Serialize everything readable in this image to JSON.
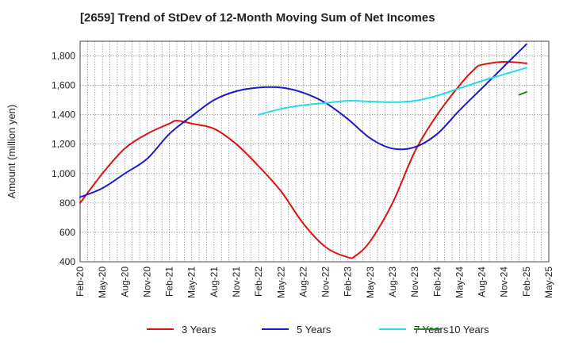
{
  "title": "[2659]  Trend of StDev of 12-Month Moving Sum of Net Incomes",
  "chart_data": {
    "type": "line",
    "title": "[2659]  Trend of StDev of 12-Month Moving Sum of Net Incomes",
    "xlabel": "",
    "ylabel": "Amount (million yen)",
    "ylim": [
      400,
      1900
    ],
    "yticks": [
      400,
      600,
      800,
      1000,
      1200,
      1400,
      1600,
      1800
    ],
    "ytick_labels": [
      "400",
      "600",
      "800",
      "1,000",
      "1,200",
      "1,400",
      "1,600",
      "1,800"
    ],
    "xticks": [
      "Feb-20",
      "May-20",
      "Aug-20",
      "Nov-20",
      "Feb-21",
      "May-21",
      "Aug-21",
      "Nov-21",
      "Feb-22",
      "May-22",
      "Aug-22",
      "Nov-22",
      "Feb-23",
      "May-23",
      "Aug-23",
      "Nov-23",
      "Feb-24",
      "May-24",
      "Aug-24",
      "Nov-24",
      "Feb-25",
      "May-25"
    ],
    "grid": true,
    "grid_style": "dotted",
    "legend_position": "bottom",
    "series": [
      {
        "name": "3 Years",
        "color": "#dd1111",
        "points": [
          [
            "Feb-20",
            800
          ],
          [
            "May-20",
            1000
          ],
          [
            "Aug-20",
            1170
          ],
          [
            "Nov-20",
            1270
          ],
          [
            "Feb-21",
            1340
          ],
          [
            "Mar-21",
            1360
          ],
          [
            "May-21",
            1340
          ],
          [
            "Aug-21",
            1305
          ],
          [
            "Nov-21",
            1200
          ],
          [
            "Feb-22",
            1050
          ],
          [
            "May-22",
            880
          ],
          [
            "Aug-22",
            660
          ],
          [
            "Nov-22",
            500
          ],
          [
            "Feb-23",
            430
          ],
          [
            "Mar-23",
            440
          ],
          [
            "May-23",
            540
          ],
          [
            "Aug-23",
            800
          ],
          [
            "Nov-23",
            1150
          ],
          [
            "Feb-24",
            1400
          ],
          [
            "May-24",
            1600
          ],
          [
            "Jul-24",
            1710
          ],
          [
            "Aug-24",
            1740
          ],
          [
            "Nov-24",
            1760
          ],
          [
            "Feb-25",
            1750
          ]
        ]
      },
      {
        "name": "5 Years",
        "color": "#1a1acc",
        "points": [
          [
            "Feb-20",
            840
          ],
          [
            "May-20",
            900
          ],
          [
            "Aug-20",
            1000
          ],
          [
            "Nov-20",
            1100
          ],
          [
            "Feb-21",
            1270
          ],
          [
            "May-21",
            1390
          ],
          [
            "Aug-21",
            1500
          ],
          [
            "Nov-21",
            1560
          ],
          [
            "Feb-22",
            1585
          ],
          [
            "May-22",
            1585
          ],
          [
            "Aug-22",
            1550
          ],
          [
            "Nov-22",
            1480
          ],
          [
            "Feb-23",
            1370
          ],
          [
            "May-23",
            1240
          ],
          [
            "Aug-23",
            1170
          ],
          [
            "Nov-23",
            1180
          ],
          [
            "Feb-24",
            1270
          ],
          [
            "May-24",
            1430
          ],
          [
            "Aug-24",
            1580
          ],
          [
            "Nov-24",
            1730
          ],
          [
            "Feb-25",
            1880
          ]
        ]
      },
      {
        "name": "7 Years",
        "color": "#22ddee",
        "points": [
          [
            "Feb-22",
            1400
          ],
          [
            "May-22",
            1440
          ],
          [
            "Aug-22",
            1465
          ],
          [
            "Nov-22",
            1480
          ],
          [
            "Feb-23",
            1495
          ],
          [
            "May-23",
            1490
          ],
          [
            "Aug-23",
            1485
          ],
          [
            "Nov-23",
            1495
          ],
          [
            "Feb-24",
            1530
          ],
          [
            "May-24",
            1580
          ],
          [
            "Aug-24",
            1630
          ],
          [
            "Nov-24",
            1675
          ],
          [
            "Feb-25",
            1720
          ]
        ]
      },
      {
        "name": "10 Years",
        "color": "#228822",
        "points": [
          [
            "Jan-25",
            1535
          ],
          [
            "Feb-25",
            1555
          ]
        ]
      }
    ]
  }
}
